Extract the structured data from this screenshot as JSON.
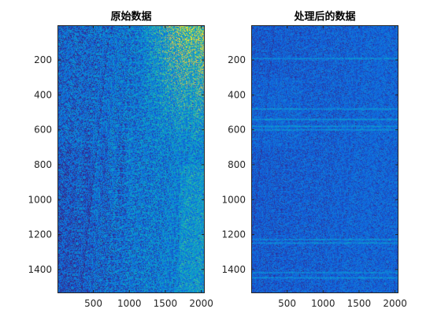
{
  "chart_data": [
    {
      "type": "heatmap",
      "title": "原始数据",
      "colormap": "parula",
      "xlim": [
        1,
        2048
      ],
      "ylim": [
        1,
        1536
      ],
      "y_direction": "reverse",
      "xticks": [
        500,
        1000,
        1500,
        2000
      ],
      "yticks": [
        200,
        400,
        600,
        800,
        1000,
        1200,
        1400
      ],
      "xtick_labels": [
        "500",
        "1000",
        "1500",
        "2000"
      ],
      "ytick_labels": [
        "200",
        "400",
        "600",
        "800",
        "1000",
        "1200",
        "1400"
      ],
      "noise": "strong",
      "hot_region": {
        "x_from": 1300,
        "y_to": 600,
        "intensity": "high"
      },
      "vertical_streaks": true
    },
    {
      "type": "heatmap",
      "title": "处理后的数据",
      "colormap": "parula",
      "xlim": [
        1,
        2048
      ],
      "ylim": [
        1,
        1536
      ],
      "y_direction": "reverse",
      "xticks": [
        500,
        1000,
        1500,
        2000
      ],
      "yticks": [
        200,
        400,
        600,
        800,
        1000,
        1200,
        1400
      ],
      "xtick_labels": [
        "500",
        "1000",
        "1500",
        "2000"
      ],
      "ytick_labels": [
        "200",
        "400",
        "600",
        "800",
        "1000",
        "1200",
        "1400"
      ],
      "noise": "weak",
      "horizontal_streaks_at": [
        190,
        480,
        540,
        580,
        600,
        1230,
        1250,
        1420,
        1450
      ],
      "vertical_streaks": false
    }
  ]
}
